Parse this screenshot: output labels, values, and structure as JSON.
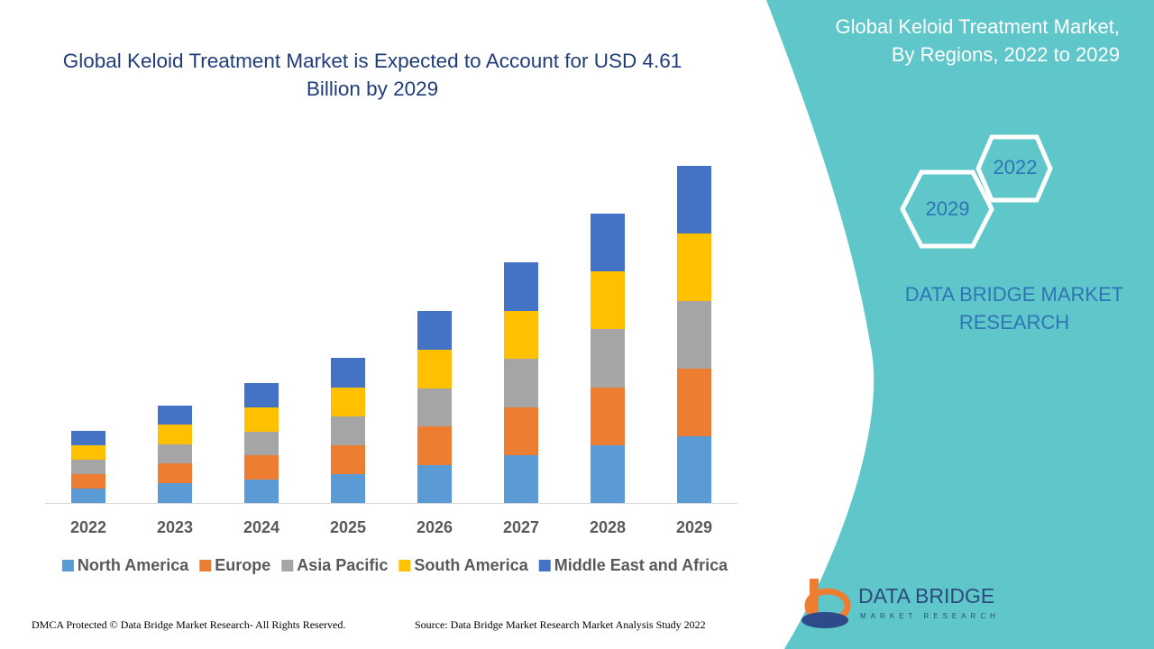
{
  "chart_data": {
    "type": "stacked_bar",
    "title": "Global Keloid Treatment Market is Expected to Account for USD 4.61 Billion by 2029",
    "categories": [
      "2022",
      "2023",
      "2024",
      "2025",
      "2026",
      "2027",
      "2028",
      "2029"
    ],
    "series": [
      {
        "name": "North America",
        "color": "#5b9bd5",
        "values": [
          16,
          22,
          26,
          32,
          42,
          53,
          64,
          74
        ]
      },
      {
        "name": "Europe",
        "color": "#ed7d31",
        "values": [
          16,
          22,
          27,
          32,
          43,
          53,
          64,
          75
        ]
      },
      {
        "name": "Asia Pacific",
        "color": "#a5a5a5",
        "values": [
          16,
          21,
          26,
          32,
          42,
          54,
          65,
          75
        ]
      },
      {
        "name": "South America",
        "color": "#ffc000",
        "values": [
          16,
          22,
          27,
          32,
          43,
          53,
          64,
          75
        ]
      },
      {
        "name": "Middle East and Africa",
        "color": "#4472c4",
        "values": [
          16,
          21,
          27,
          33,
          43,
          54,
          64,
          75
        ]
      }
    ],
    "ylim": [
      0,
      400
    ],
    "legend": "bottom"
  },
  "side_title": "Global Keloid Treatment Market, By Regions, 2022 to 2029",
  "hexagons": [
    "2022",
    "2029"
  ],
  "brand": "DATA BRIDGE MARKET RESEARCH",
  "logo": {
    "name": "DATA BRIDGE",
    "tagline": "MARKET RESEARCH"
  },
  "footer": {
    "left": "DMCA Protected © Data Bridge Market Research- All Rights Reserved.",
    "right": "Source: Data Bridge Market Research Market Analysis Study 2022"
  }
}
